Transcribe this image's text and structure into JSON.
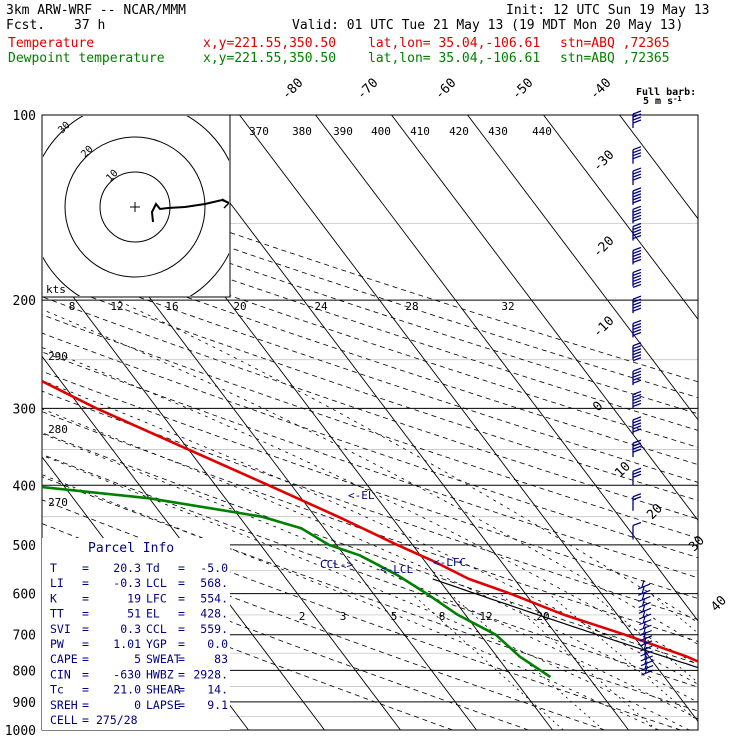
{
  "header": {
    "model": "3km ARW-WRF -- NCAR/MMM",
    "init": "Init: 12 UTC Sun 19 May 13",
    "fcst_label": "Fcst.",
    "fcst_value": "37 h",
    "valid": "Valid: 01 UTC Tue 21 May 13 (19 MDT Mon 20 May 13)",
    "temperature_line": {
      "name": "Temperature",
      "xy": "x,y=221.55,350.50",
      "latlon": "lat,lon= 35.04,-106.61",
      "stn": "stn=ABQ ,72365",
      "color": "#e00000"
    },
    "dewpoint_line": {
      "name": "Dewpoint temperature",
      "xy": "x,y=221.55,350.50",
      "latlon": "lat,lon= 35.04,-106.61",
      "stn": "stn=ABQ ,72365",
      "color": "#008000"
    }
  },
  "barb_legend": {
    "line1": "Full barb:",
    "line2": "5 m s",
    "sup": "-1"
  },
  "hodograph": {
    "units": "kts",
    "ring_labels": [
      "10",
      "20",
      "30"
    ]
  },
  "parcel_info": {
    "title": "Parcel Info",
    "rows": [
      [
        "T",
        "=",
        "20.3",
        "Td",
        "=",
        "-5.0"
      ],
      [
        "LI",
        "=",
        "-0.3",
        "LCL",
        "=",
        "568."
      ],
      [
        "K",
        "=",
        "19",
        "LFC",
        "=",
        "554."
      ],
      [
        "TT",
        "=",
        "51",
        "EL",
        "=",
        "428."
      ],
      [
        "SVI",
        "=",
        "0.3",
        "CCL",
        "=",
        "559."
      ],
      [
        "PW",
        "=",
        "1.01",
        "YGP",
        "=",
        "0.0"
      ],
      [
        "CAPE",
        "=",
        "5",
        "SWEAT",
        "=",
        "83"
      ],
      [
        "CIN",
        "=",
        "-630",
        "HWBZ",
        "=",
        "2928."
      ],
      [
        "Tc",
        "=",
        "21.0",
        "SHEAR",
        "=",
        "14."
      ],
      [
        "SREH",
        "=",
        "0",
        "LAPSE",
        "=",
        "9.1"
      ],
      [
        "CELL",
        "=",
        "275/28",
        "",
        "",
        ""
      ]
    ]
  },
  "chart_data": {
    "type": "line",
    "chart_kind": "skew-T log-P sounding",
    "y_axis": {
      "label": "Pressure (hPa)",
      "scale": "log",
      "range": [
        1000,
        100
      ],
      "ticks": [
        100,
        200,
        300,
        400,
        500,
        600,
        700,
        800,
        900,
        1000
      ]
    },
    "isotherm_labels": [
      -80,
      -70,
      -60,
      -50,
      -40,
      -30,
      -20,
      -10,
      0,
      10,
      20,
      30,
      40
    ],
    "theta_labels": [
      370,
      380,
      390,
      400,
      410,
      420,
      430,
      440
    ],
    "theta_side_labels": [
      290,
      280,
      270
    ],
    "mixing_ratio_labels_upper": [
      8,
      12,
      16,
      20,
      24,
      28,
      32
    ],
    "mixing_ratio_labels_lower": [
      2,
      3,
      5,
      8,
      12,
      20
    ],
    "annotations": [
      "EL",
      "LCL",
      "CCL",
      "LFC"
    ],
    "series": [
      {
        "name": "Temperature",
        "color": "#e00000",
        "points": [
          [
            840,
            20.3
          ],
          [
            760,
            15
          ],
          [
            700,
            9
          ],
          [
            650,
            3
          ],
          [
            600,
            -2
          ],
          [
            568,
            -6
          ],
          [
            530,
            -9
          ],
          [
            500,
            -12
          ],
          [
            450,
            -17
          ],
          [
            400,
            -23
          ],
          [
            350,
            -30
          ],
          [
            300,
            -38
          ],
          [
            250,
            -46
          ],
          [
            200,
            -52
          ],
          [
            180,
            -53
          ],
          [
            165,
            -55
          ],
          [
            150,
            -58
          ],
          [
            140,
            -59
          ],
          [
            130,
            -60
          ],
          [
            120,
            -63
          ],
          [
            112,
            -64
          ],
          [
            105,
            -65
          ],
          [
            100,
            -66
          ]
        ]
      },
      {
        "name": "Dewpoint temperature",
        "color": "#008000",
        "points": [
          [
            820,
            -5
          ],
          [
            760,
            -7
          ],
          [
            700,
            -8
          ],
          [
            650,
            -11
          ],
          [
            600,
            -13
          ],
          [
            560,
            -15
          ],
          [
            520,
            -18
          ],
          [
            500,
            -21
          ],
          [
            470,
            -23
          ],
          [
            450,
            -27
          ],
          [
            420,
            -40
          ],
          [
            400,
            -55
          ],
          [
            370,
            -65
          ],
          [
            355,
            -66
          ],
          [
            330,
            -64
          ],
          [
            300,
            -60
          ],
          [
            250,
            -56
          ],
          [
            200,
            -52
          ],
          [
            175,
            -53
          ],
          [
            155,
            -55
          ],
          [
            130,
            -59
          ],
          [
            115,
            -64
          ],
          [
            100,
            -69
          ]
        ]
      }
    ],
    "wind_barbs": [
      {
        "p": 105,
        "spd": 20
      },
      {
        "p": 120,
        "spd": 20
      },
      {
        "p": 130,
        "spd": 20
      },
      {
        "p": 140,
        "spd": 25
      },
      {
        "p": 150,
        "spd": 25
      },
      {
        "p": 160,
        "spd": 25
      },
      {
        "p": 175,
        "spd": 25
      },
      {
        "p": 190,
        "spd": 30
      },
      {
        "p": 210,
        "spd": 25
      },
      {
        "p": 230,
        "spd": 25
      },
      {
        "p": 250,
        "spd": 30
      },
      {
        "p": 275,
        "spd": 25
      },
      {
        "p": 300,
        "spd": 25
      },
      {
        "p": 330,
        "spd": 25
      },
      {
        "p": 360,
        "spd": 20
      },
      {
        "p": 400,
        "spd": 15
      },
      {
        "p": 440,
        "spd": 10
      },
      {
        "p": 490,
        "spd": 5
      }
    ]
  }
}
